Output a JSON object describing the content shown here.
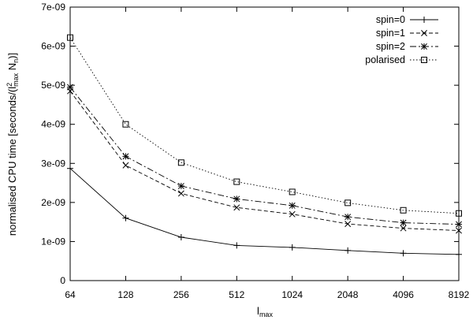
{
  "chart_data": {
    "type": "line",
    "x_scale": "log2",
    "x": [
      64,
      128,
      256,
      512,
      1024,
      2048,
      4096,
      8192
    ],
    "x_tick_labels": [
      "64",
      "128",
      "256",
      "512",
      "1024",
      "2048",
      "4096",
      "8192"
    ],
    "xlim": [
      64,
      8192
    ],
    "ylim": [
      0,
      7e-09
    ],
    "y_ticks": [
      0,
      1e-09,
      2e-09,
      3e-09,
      4e-09,
      5e-09,
      6e-09,
      7e-09
    ],
    "y_tick_labels": [
      "0",
      "1e-09",
      "2e-09",
      "3e-09",
      "4e-09",
      "5e-09",
      "6e-09",
      "7e-09"
    ],
    "xlabel": {
      "base": "l",
      "sub": "max"
    },
    "ylabel": {
      "prefix": "normalised CPU time [seconds/(l",
      "sup": "2",
      "sub": "max",
      "mid": " N",
      "sub2": "n",
      "suffix": ")]"
    },
    "grid": false,
    "legend_position": "top-right",
    "series": [
      {
        "name": "spin=0",
        "marker": "plus",
        "dash": "none",
        "values": [
          2.87e-09,
          1.6e-09,
          1.11e-09,
          9e-10,
          8.5e-10,
          7.7e-10,
          7e-10,
          6.7e-10
        ]
      },
      {
        "name": "spin=1",
        "marker": "cross",
        "dash": "5,3",
        "values": [
          4.85e-09,
          2.95e-09,
          2.23e-09,
          1.87e-09,
          1.7e-09,
          1.45e-09,
          1.34e-09,
          1.28e-09
        ]
      },
      {
        "name": "spin=2",
        "marker": "star",
        "dash": "8,3,2,3",
        "values": [
          4.95e-09,
          3.18e-09,
          2.42e-09,
          2.09e-09,
          1.92e-09,
          1.63e-09,
          1.48e-09,
          1.44e-09
        ]
      },
      {
        "name": "polarised",
        "marker": "square",
        "dash": "1.5,2.5",
        "values": [
          6.22e-09,
          4e-09,
          3.02e-09,
          2.53e-09,
          2.27e-09,
          1.99e-09,
          1.8e-09,
          1.72e-09
        ]
      }
    ]
  }
}
